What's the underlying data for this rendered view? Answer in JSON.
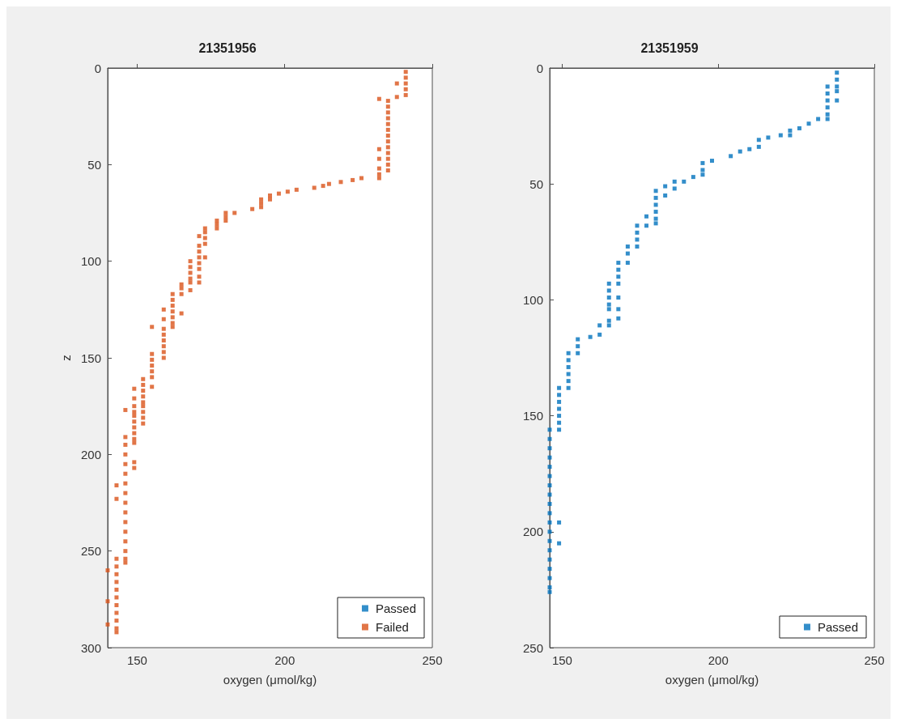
{
  "chart_data": [
    {
      "type": "scatter",
      "title": "21351956",
      "xlabel": "oxygen (μmol/kg)",
      "ylabel": "z",
      "xlim": [
        140,
        250
      ],
      "xticks": [
        150,
        200,
        250
      ],
      "ylim": [
        300,
        0
      ],
      "yticks": [
        0,
        50,
        100,
        150,
        200,
        250,
        300
      ],
      "legend": "bottom right",
      "marker": "square",
      "series": [
        {
          "name": "Passed",
          "color": "#0072bd"
        },
        {
          "name": "Failed",
          "color": "#d95319",
          "x": [
            241,
            241,
            241,
            241,
            241,
            238,
            238,
            232,
            235,
            235,
            235,
            235,
            235,
            235,
            235,
            235,
            235,
            235,
            235,
            235,
            235,
            232,
            232,
            232,
            232,
            232,
            226,
            223,
            219,
            215,
            213,
            210,
            204,
            201,
            198,
            195,
            195,
            192,
            192,
            192,
            189,
            183,
            180,
            180,
            180,
            177,
            177,
            177,
            173,
            173,
            173,
            173,
            173,
            171,
            171,
            171,
            171,
            171,
            171,
            171,
            171,
            168,
            168,
            168,
            168,
            168,
            168,
            165,
            165,
            165,
            165,
            162,
            162,
            162,
            162,
            162,
            162,
            162,
            159,
            159,
            159,
            159,
            159,
            159,
            159,
            159,
            155,
            155,
            155,
            155,
            155,
            155,
            155,
            152,
            152,
            152,
            152,
            152,
            152,
            152,
            152,
            152,
            149,
            149,
            149,
            149,
            149,
            149,
            149,
            149,
            149,
            149,
            149,
            149,
            146,
            146,
            146,
            146,
            146,
            146,
            146,
            146,
            146,
            146,
            146,
            146,
            146,
            146,
            146,
            146,
            143,
            143,
            143,
            143,
            143,
            143,
            143,
            143,
            143,
            143,
            143,
            143,
            143,
            140,
            140,
            140
          ],
          "values": [
            2,
            5,
            8,
            11,
            14,
            8,
            15,
            16,
            17,
            20,
            23,
            26,
            29,
            32,
            35,
            38,
            41,
            44,
            47,
            50,
            53,
            42,
            47,
            52,
            55,
            57,
            57,
            58,
            59,
            60,
            61,
            62,
            63,
            64,
            65,
            66,
            68,
            68,
            70,
            72,
            73,
            75,
            75,
            77,
            79,
            79,
            81,
            83,
            83,
            85,
            88,
            91,
            98,
            87,
            92,
            95,
            98,
            101,
            104,
            108,
            111,
            100,
            103,
            106,
            109,
            111,
            115,
            112,
            114,
            117,
            127,
            117,
            120,
            123,
            126,
            129,
            132,
            134,
            125,
            130,
            135,
            138,
            141,
            144,
            147,
            150,
            134,
            148,
            151,
            154,
            157,
            160,
            165,
            161,
            164,
            167,
            170,
            173,
            175,
            178,
            181,
            184,
            166,
            171,
            175,
            178,
            180,
            183,
            186,
            189,
            192,
            194,
            204,
            207,
            177,
            191,
            195,
            200,
            205,
            210,
            215,
            220,
            225,
            230,
            235,
            240,
            245,
            250,
            254,
            256,
            216,
            223,
            254,
            258,
            262,
            266,
            270,
            274,
            278,
            282,
            286,
            290,
            292,
            260,
            276,
            288
          ]
        }
      ]
    },
    {
      "type": "scatter",
      "title": "21351959",
      "xlabel": "oxygen (μmol/kg)",
      "xlim": [
        146,
        250
      ],
      "xticks": [
        150,
        200,
        250
      ],
      "ylim": [
        250,
        0
      ],
      "yticks": [
        0,
        50,
        100,
        150,
        200,
        250
      ],
      "legend": "bottom right",
      "marker": "square",
      "series": [
        {
          "name": "Passed",
          "color": "#0072bd",
          "x": [
            238,
            238,
            238,
            238,
            238,
            235,
            235,
            235,
            235,
            235,
            235,
            232,
            229,
            226,
            223,
            223,
            220,
            216,
            213,
            213,
            210,
            207,
            204,
            198,
            195,
            195,
            195,
            192,
            189,
            186,
            186,
            183,
            183,
            180,
            180,
            180,
            180,
            180,
            180,
            177,
            177,
            174,
            174,
            174,
            174,
            171,
            171,
            171,
            168,
            168,
            168,
            168,
            168,
            168,
            168,
            165,
            165,
            165,
            165,
            165,
            165,
            165,
            162,
            162,
            159,
            155,
            155,
            155,
            152,
            152,
            152,
            152,
            152,
            152,
            149,
            149,
            149,
            149,
            149,
            149,
            149,
            149,
            149,
            146,
            146,
            146,
            146,
            146,
            146,
            146,
            146,
            146,
            146,
            146,
            146,
            146,
            146,
            146,
            146,
            146,
            146,
            146
          ],
          "values": [
            2,
            5,
            8,
            10,
            14,
            8,
            11,
            14,
            17,
            20,
            22,
            22,
            24,
            26,
            27,
            29,
            29,
            30,
            31,
            34,
            35,
            36,
            38,
            40,
            41,
            44,
            46,
            47,
            49,
            49,
            52,
            51,
            55,
            53,
            56,
            59,
            62,
            65,
            67,
            64,
            68,
            68,
            71,
            74,
            77,
            77,
            80,
            84,
            84,
            87,
            90,
            93,
            99,
            104,
            108,
            93,
            96,
            99,
            102,
            104,
            109,
            111,
            111,
            115,
            116,
            117,
            120,
            123,
            123,
            126,
            129,
            132,
            135,
            138,
            138,
            141,
            144,
            147,
            150,
            153,
            156,
            196,
            205,
            156,
            160,
            164,
            168,
            172,
            176,
            180,
            184,
            188,
            192,
            196,
            200,
            204,
            208,
            212,
            216,
            220,
            224,
            226
          ]
        }
      ]
    }
  ]
}
